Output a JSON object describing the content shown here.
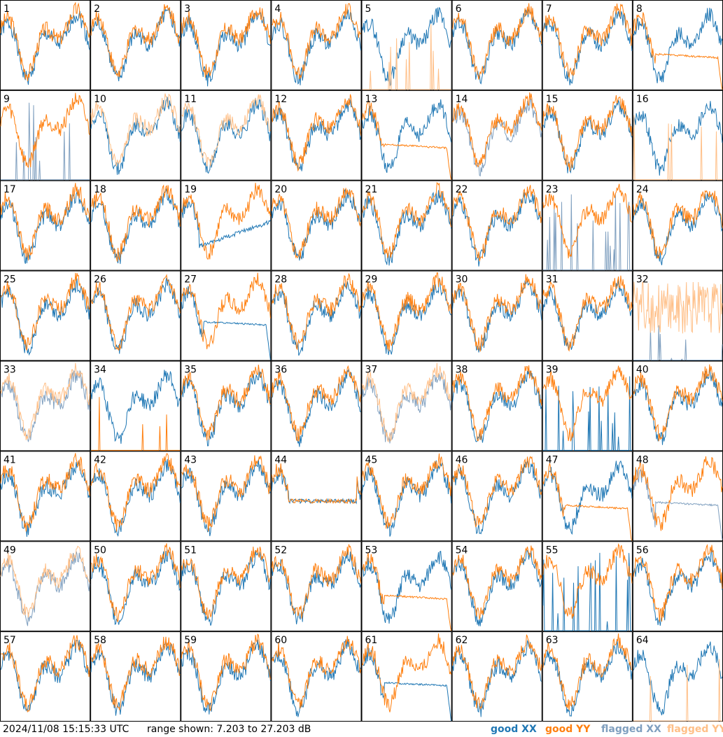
{
  "footer": {
    "timestamp": "2024/11/08 15:15:33 UTC",
    "range_text": "range shown: 7.203 to 27.203 dB"
  },
  "legend": [
    {
      "label": "good XX",
      "color": "#1f77b4",
      "key": "goodXX"
    },
    {
      "label": "good YY",
      "color": "#ff7f0e",
      "key": "goodYY"
    },
    {
      "label": "flagged XX",
      "color": "#7f9fbf",
      "key": "flagXX"
    },
    {
      "label": "flagged YY",
      "color": "#ffbf87",
      "key": "flagYY"
    }
  ],
  "chart_data": {
    "type": "line",
    "title": "",
    "ylim": [
      7.203,
      27.203
    ],
    "yunit": "dB",
    "grid": "8x8 small multiples",
    "panels": [
      {
        "label": "1",
        "xx": "good",
        "yy": "good",
        "pattern": "normal"
      },
      {
        "label": "2",
        "xx": "good",
        "yy": "good",
        "pattern": "normal"
      },
      {
        "label": "3",
        "xx": "good",
        "yy": "good",
        "pattern": "normal"
      },
      {
        "label": "4",
        "xx": "good",
        "yy": "good",
        "pattern": "normal"
      },
      {
        "label": "5",
        "xx": "good",
        "yy": "flagged",
        "pattern": "yy-spikes"
      },
      {
        "label": "6",
        "xx": "good",
        "yy": "good",
        "pattern": "normal"
      },
      {
        "label": "7",
        "xx": "good",
        "yy": "good",
        "pattern": "normal"
      },
      {
        "label": "8",
        "xx": "good",
        "yy": "good",
        "pattern": "yy-decay"
      },
      {
        "label": "9",
        "xx": "flagged",
        "yy": "good",
        "pattern": "xx-spikes"
      },
      {
        "label": "10",
        "xx": "good",
        "yy": "flagged",
        "pattern": "normal"
      },
      {
        "label": "11",
        "xx": "good",
        "yy": "flagged",
        "pattern": "normal"
      },
      {
        "label": "12",
        "xx": "good",
        "yy": "good",
        "pattern": "normal"
      },
      {
        "label": "13",
        "xx": "good",
        "yy": "good",
        "pattern": "yy-decay"
      },
      {
        "label": "14",
        "xx": "flagged",
        "yy": "good",
        "pattern": "normal"
      },
      {
        "label": "15",
        "xx": "good",
        "yy": "good",
        "pattern": "normal"
      },
      {
        "label": "16",
        "xx": "good",
        "yy": "flagged",
        "pattern": "yy-spikes"
      },
      {
        "label": "17",
        "xx": "good",
        "yy": "good",
        "pattern": "normal"
      },
      {
        "label": "18",
        "xx": "good",
        "yy": "good",
        "pattern": "normal"
      },
      {
        "label": "19",
        "xx": "good",
        "yy": "good",
        "pattern": "xx-low"
      },
      {
        "label": "20",
        "xx": "good",
        "yy": "good",
        "pattern": "normal"
      },
      {
        "label": "21",
        "xx": "good",
        "yy": "good",
        "pattern": "normal"
      },
      {
        "label": "22",
        "xx": "good",
        "yy": "good",
        "pattern": "normal"
      },
      {
        "label": "23",
        "xx": "flagged",
        "yy": "good",
        "pattern": "xx-spikes"
      },
      {
        "label": "24",
        "xx": "good",
        "yy": "good",
        "pattern": "normal"
      },
      {
        "label": "25",
        "xx": "good",
        "yy": "good",
        "pattern": "normal"
      },
      {
        "label": "26",
        "xx": "good",
        "yy": "good",
        "pattern": "normal"
      },
      {
        "label": "27",
        "xx": "good",
        "yy": "good",
        "pattern": "xx-decay"
      },
      {
        "label": "28",
        "xx": "good",
        "yy": "good",
        "pattern": "normal"
      },
      {
        "label": "29",
        "xx": "good",
        "yy": "good",
        "pattern": "normal"
      },
      {
        "label": "30",
        "xx": "good",
        "yy": "good",
        "pattern": "normal"
      },
      {
        "label": "31",
        "xx": "good",
        "yy": "good",
        "pattern": "normal"
      },
      {
        "label": "32",
        "xx": "flagged",
        "yy": "flagged",
        "pattern": "yy-noisy"
      },
      {
        "label": "33",
        "xx": "flagged",
        "yy": "flagged",
        "pattern": "normal"
      },
      {
        "label": "34",
        "xx": "good",
        "yy": "good",
        "pattern": "yy-spikes"
      },
      {
        "label": "35",
        "xx": "good",
        "yy": "good",
        "pattern": "normal"
      },
      {
        "label": "36",
        "xx": "good",
        "yy": "good",
        "pattern": "normal"
      },
      {
        "label": "37",
        "xx": "flagged",
        "yy": "flagged",
        "pattern": "normal"
      },
      {
        "label": "38",
        "xx": "good",
        "yy": "good",
        "pattern": "normal"
      },
      {
        "label": "39",
        "xx": "good",
        "yy": "good",
        "pattern": "xx-spikes"
      },
      {
        "label": "40",
        "xx": "good",
        "yy": "good",
        "pattern": "normal"
      },
      {
        "label": "41",
        "xx": "good",
        "yy": "good",
        "pattern": "normal"
      },
      {
        "label": "42",
        "xx": "good",
        "yy": "good",
        "pattern": "normal"
      },
      {
        "label": "43",
        "xx": "good",
        "yy": "good",
        "pattern": "normal"
      },
      {
        "label": "44",
        "xx": "good",
        "yy": "good",
        "pattern": "flat"
      },
      {
        "label": "45",
        "xx": "good",
        "yy": "good",
        "pattern": "normal"
      },
      {
        "label": "46",
        "xx": "good",
        "yy": "good",
        "pattern": "normal"
      },
      {
        "label": "47",
        "xx": "good",
        "yy": "good",
        "pattern": "yy-decay"
      },
      {
        "label": "48",
        "xx": "flagged",
        "yy": "good",
        "pattern": "xx-decay"
      },
      {
        "label": "49",
        "xx": "flagged",
        "yy": "flagged",
        "pattern": "normal"
      },
      {
        "label": "50",
        "xx": "good",
        "yy": "good",
        "pattern": "normal"
      },
      {
        "label": "51",
        "xx": "good",
        "yy": "good",
        "pattern": "normal"
      },
      {
        "label": "52",
        "xx": "good",
        "yy": "good",
        "pattern": "normal"
      },
      {
        "label": "53",
        "xx": "good",
        "yy": "good",
        "pattern": "yy-decay"
      },
      {
        "label": "54",
        "xx": "good",
        "yy": "good",
        "pattern": "normal"
      },
      {
        "label": "55",
        "xx": "good",
        "yy": "good",
        "pattern": "xx-spikes"
      },
      {
        "label": "56",
        "xx": "good",
        "yy": "good",
        "pattern": "normal"
      },
      {
        "label": "57",
        "xx": "good",
        "yy": "good",
        "pattern": "normal"
      },
      {
        "label": "58",
        "xx": "good",
        "yy": "good",
        "pattern": "normal"
      },
      {
        "label": "59",
        "xx": "good",
        "yy": "good",
        "pattern": "normal"
      },
      {
        "label": "60",
        "xx": "good",
        "yy": "good",
        "pattern": "normal"
      },
      {
        "label": "61",
        "xx": "good",
        "yy": "good",
        "pattern": "xx-decay"
      },
      {
        "label": "62",
        "xx": "good",
        "yy": "good",
        "pattern": "normal"
      },
      {
        "label": "63",
        "xx": "good",
        "yy": "good",
        "pattern": "normal"
      },
      {
        "label": "64",
        "xx": "good",
        "yy": "flagged",
        "pattern": "yy-spikes"
      }
    ]
  }
}
